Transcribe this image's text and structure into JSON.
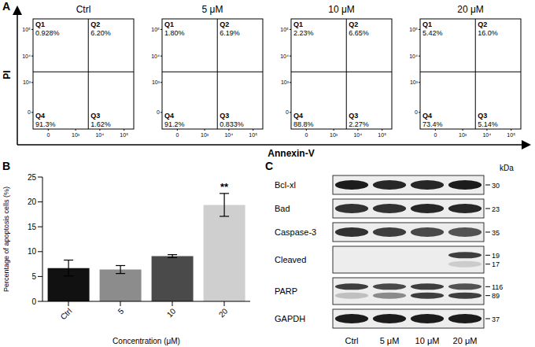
{
  "panel_a": {
    "panel_label": "A",
    "type": "flow_cytometry_quadrants",
    "x_label": "Annexin-V",
    "y_label": "PI",
    "log": true,
    "xlim": [
      -300,
      250000
    ],
    "ylim": [
      -300,
      250000
    ],
    "xticks": [
      {
        "value": 0,
        "label": "0"
      },
      {
        "value": 1000,
        "label": "10³"
      },
      {
        "value": 10000,
        "label": "10⁴"
      },
      {
        "value": 100000,
        "label": "10⁵"
      }
    ],
    "yticks": [
      {
        "value": 0,
        "label": "0"
      },
      {
        "value": 1000,
        "label": "10³"
      },
      {
        "value": 10000,
        "label": "10⁴"
      },
      {
        "value": 100000,
        "label": "10⁵"
      }
    ],
    "gate": {
      "x": 3350,
      "y": 2530
    },
    "plots": [
      {
        "title": "Ctrl",
        "quadrants": [
          {
            "name": "Q1",
            "value": 0.928,
            "label": "0.928%"
          },
          {
            "name": "Q2",
            "value": 6.2,
            "label": "6.20%"
          },
          {
            "name": "Q3",
            "value": 1.62,
            "label": "1.62%"
          },
          {
            "name": "Q4",
            "value": 91.3,
            "label": "91.3%"
          }
        ]
      },
      {
        "title": "5 μM",
        "quadrants": [
          {
            "name": "Q1",
            "value": 1.8,
            "label": "1.80%"
          },
          {
            "name": "Q2",
            "value": 6.19,
            "label": "6.19%"
          },
          {
            "name": "Q3",
            "value": 0.833,
            "label": "0.833%"
          },
          {
            "name": "Q4",
            "value": 91.2,
            "label": "91.2%"
          }
        ]
      },
      {
        "title": "10 μM",
        "quadrants": [
          {
            "name": "Q1",
            "value": 2.23,
            "label": "2.23%"
          },
          {
            "name": "Q2",
            "value": 6.65,
            "label": "6.65%"
          },
          {
            "name": "Q3",
            "value": 2.27,
            "label": "2.27%"
          },
          {
            "name": "Q4",
            "value": 88.8,
            "label": "88.8%"
          }
        ]
      },
      {
        "title": "20 μM",
        "quadrants": [
          {
            "name": "Q1",
            "value": 5.42,
            "label": "5.42%"
          },
          {
            "name": "Q2",
            "value": 16,
            "label": "16.0%"
          },
          {
            "name": "Q3",
            "value": 5.14,
            "label": "5.14%"
          },
          {
            "name": "Q4",
            "value": 73.4,
            "label": "73.4%"
          }
        ]
      }
    ]
  },
  "chart_data": {
    "type": "bar",
    "panel_label": "B",
    "categories": [
      "Ctrl",
      "5",
      "10",
      "20"
    ],
    "values": [
      6.7,
      6.4,
      9.1,
      19.4
    ],
    "errors": [
      1.6,
      0.8,
      0.3,
      2.3
    ],
    "colors": [
      "#111111",
      "#8c8c8c",
      "#4a4a4a",
      "#cfcfcf"
    ],
    "x_label": "Concentration (μM)",
    "y_label": "Percentage of apoptosis cells (%)",
    "ylim": [
      0,
      25
    ],
    "yticks": [
      0,
      5,
      10,
      15,
      20,
      25
    ],
    "grid": false,
    "annotations": [
      {
        "text": "**",
        "category": "20"
      }
    ]
  },
  "panel_c": {
    "panel_label": "C",
    "type": "western_blot",
    "unit": "kDa",
    "lanes": [
      "Ctrl",
      "5 μM",
      "10 μM",
      "20 μM"
    ],
    "rows": [
      {
        "label": "Bcl-xl",
        "bands": [
          {
            "kda": 30,
            "intensity": [
              0.95,
              0.9,
              0.9,
              0.95
            ]
          }
        ]
      },
      {
        "label": "Bad",
        "bands": [
          {
            "kda": 23,
            "intensity": [
              0.85,
              0.85,
              0.9,
              0.9
            ]
          }
        ]
      },
      {
        "label": "Caspase-3",
        "bands": [
          {
            "kda": 35,
            "intensity": [
              0.85,
              0.8,
              0.75,
              0.7
            ]
          }
        ]
      },
      {
        "label": "Cleaved",
        "bands": [
          {
            "kda": 19,
            "intensity": [
              0,
              0,
              0,
              0.8
            ]
          },
          {
            "kda": 17,
            "intensity": [
              0,
              0,
              0,
              0.15
            ]
          }
        ]
      },
      {
        "label": "PARP",
        "bands": [
          {
            "kda": 116,
            "intensity": [
              0.8,
              0.75,
              0.8,
              0.7
            ]
          },
          {
            "kda": 89,
            "intensity": [
              0.2,
              0.45,
              0.8,
              0.8
            ]
          }
        ]
      },
      {
        "label": "GAPDH",
        "bands": [
          {
            "kda": 37,
            "intensity": [
              0.95,
              0.95,
              0.95,
              0.95
            ]
          }
        ]
      }
    ]
  }
}
